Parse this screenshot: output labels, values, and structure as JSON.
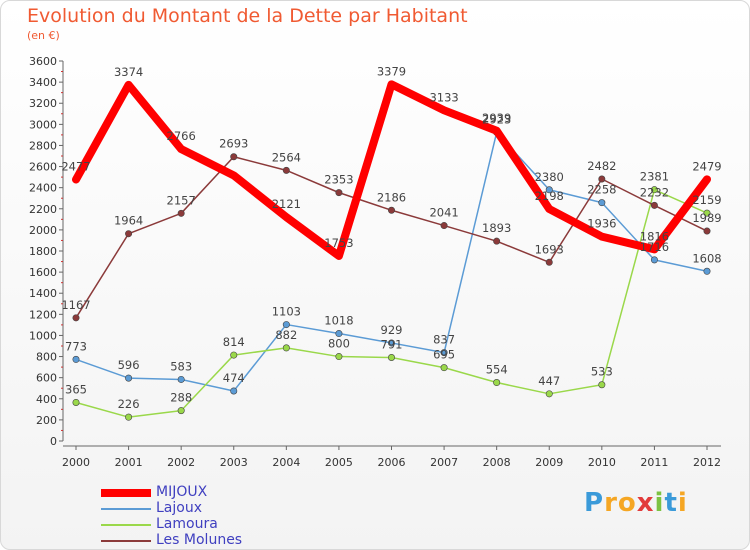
{
  "title": "Evolution du Montant de la Dette par Habitant",
  "subtitle": "(en €)",
  "logo": {
    "text": "Proxiti",
    "letters": [
      {
        "ch": "P",
        "color": "#3a9ad9"
      },
      {
        "ch": "r",
        "color": "#f5a623"
      },
      {
        "ch": "o",
        "color": "#f5a623"
      },
      {
        "ch": "x",
        "color": "#e23b3b"
      },
      {
        "ch": "i",
        "color": "#7cc242"
      },
      {
        "ch": "t",
        "color": "#3a9ad9"
      },
      {
        "ch": "i",
        "color": "#f5a623"
      }
    ]
  },
  "chart_data": {
    "type": "line",
    "x": [
      "2000",
      "2001",
      "2002",
      "2003",
      "2004",
      "2005",
      "2006",
      "2007",
      "2008",
      "2009",
      "2010",
      "2011",
      "2012"
    ],
    "ylim": [
      0,
      3600
    ],
    "yticks": [
      0,
      200,
      400,
      600,
      800,
      1000,
      1200,
      1400,
      1600,
      1800,
      2000,
      2200,
      2400,
      2600,
      2800,
      3000,
      3200,
      3400,
      3600
    ],
    "grid": false,
    "legend_position": "bottom-left",
    "series": [
      {
        "name": "MIJOUX",
        "color": "#ff0000",
        "width": 8,
        "marker": false,
        "values": [
          2477,
          3374,
          2766,
          2516,
          2121,
          1753,
          3379,
          3133,
          2939,
          2198,
          1936,
          1816,
          2479
        ],
        "labels": [
          "2477",
          "3374",
          "2766",
          "",
          "2121",
          "1753",
          "3379",
          "3133",
          "2939",
          "2198",
          "1936",
          "1816",
          "2479"
        ]
      },
      {
        "name": "Lajoux",
        "color": "#5b9bd5",
        "width": 1.5,
        "marker": true,
        "values": [
          773,
          596,
          583,
          474,
          1103,
          1018,
          929,
          837,
          2923,
          2380,
          2258,
          1716,
          1608
        ],
        "labels": [
          "773",
          "596",
          "583",
          "474",
          "1103",
          "1018",
          "929",
          "837",
          "2923",
          "2380",
          "2258",
          "1716",
          "1608"
        ]
      },
      {
        "name": "Lamoura",
        "color": "#9ad84a",
        "width": 1.5,
        "marker": true,
        "values": [
          365,
          226,
          288,
          814,
          882,
          800,
          791,
          695,
          554,
          447,
          533,
          2381,
          2159
        ],
        "labels": [
          "365",
          "226",
          "288",
          "814",
          "882",
          "800",
          "791",
          "695",
          "554",
          "447",
          "533",
          "2381",
          "2159"
        ]
      },
      {
        "name": "Les Molunes",
        "color": "#8b3a3a",
        "width": 1.5,
        "marker": true,
        "values": [
          1167,
          1964,
          2157,
          2693,
          2564,
          2353,
          2186,
          2041,
          1893,
          1693,
          2482,
          2232,
          1989
        ],
        "labels": [
          "1167",
          "1964",
          "2157",
          "2693",
          "2564",
          "2353",
          "2186",
          "2041",
          "1893",
          "1693",
          "2482",
          "2232",
          "1989"
        ]
      }
    ]
  }
}
